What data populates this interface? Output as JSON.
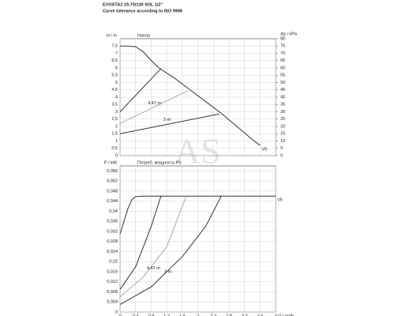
{
  "watermark": "AS",
  "chart_data": [
    {
      "type": "line",
      "title": "EVOSTA2 29-70/130 SOL 1/2\"",
      "subtitle": "Curve tolerance according to ISO 9906",
      "ylabel": "H / m",
      "y2label": "Δp / kPa",
      "annotation": "Напор",
      "xlim": [
        0,
        4
      ],
      "ylim": [
        0,
        8
      ],
      "y2lim": [
        0,
        80
      ],
      "grid": true,
      "yticks": [
        0,
        {
          "value": 0.5,
          "label": "0,5"
        },
        1,
        {
          "value": 1.5,
          "label": "1,5"
        },
        2,
        {
          "value": 2.5,
          "label": "2,5"
        },
        3,
        {
          "value": 3.5,
          "label": "3,5"
        },
        4,
        {
          "value": 4.5,
          "label": "4,5"
        },
        5,
        {
          "value": 5.5,
          "label": "5,5"
        },
        6,
        {
          "value": 6.5,
          "label": "6,5"
        },
        7,
        {
          "value": 7.5,
          "label": "7,5"
        }
      ],
      "y2ticks": [
        0,
        5,
        10,
        15,
        20,
        25,
        30,
        35,
        40,
        45,
        50,
        55,
        60,
        65,
        70,
        75,
        80
      ],
      "series": [
        {
          "name": "V6",
          "color": "#333333",
          "x": [
            0,
            0.2,
            0.4,
            0.6,
            0.8,
            1.0,
            1.4,
            1.8,
            2.2,
            2.6,
            3.0,
            3.4,
            3.6
          ],
          "values": [
            7.5,
            7.5,
            7.45,
            7.1,
            6.5,
            6.0,
            5.3,
            4.5,
            3.7,
            2.9,
            2.0,
            1.1,
            0.7
          ]
        },
        {
          "color": "#333333",
          "x": [
            0,
            1.05
          ],
          "values": [
            3.0,
            5.95
          ]
        },
        {
          "name": "4,47 m",
          "color": "#aaaaaa",
          "x": [
            0,
            1.75
          ],
          "values": [
            2.2,
            4.45
          ]
        },
        {
          "name": "3 m",
          "color": "#333333",
          "x": [
            0,
            2.55
          ],
          "values": [
            1.5,
            2.85
          ]
        }
      ]
    },
    {
      "type": "line",
      "ylabel": "P / kW",
      "xlabel": "Q / m³/h",
      "annotation": "Потреб. мощность P1",
      "xlim": [
        0,
        4
      ],
      "ylim": [
        0,
        0.058
      ],
      "grid": true,
      "xticks": [
        0,
        {
          "value": 0.4,
          "label": "0,4"
        },
        {
          "value": 0.8,
          "label": "0,8"
        },
        {
          "value": 1.2,
          "label": "1,2"
        },
        {
          "value": 1.6,
          "label": "1,6"
        },
        2,
        {
          "value": 2.4,
          "label": "2,4"
        },
        {
          "value": 2.8,
          "label": "2,8"
        },
        {
          "value": 3.2,
          "label": "3,2"
        },
        {
          "value": 3.6,
          "label": "3,6"
        },
        4
      ],
      "yticks": [
        0,
        {
          "value": 0.004,
          "label": "0,004"
        },
        {
          "value": 0.008,
          "label": "0,008"
        },
        {
          "value": 0.012,
          "label": "0,012"
        },
        {
          "value": 0.016,
          "label": "0,016"
        },
        {
          "value": 0.02,
          "label": "0,02"
        },
        {
          "value": 0.024,
          "label": "0,024"
        },
        {
          "value": 0.028,
          "label": "0,028"
        },
        {
          "value": 0.032,
          "label": "0,032"
        },
        {
          "value": 0.036,
          "label": "0,036"
        },
        {
          "value": 0.04,
          "label": "0,04"
        },
        {
          "value": 0.044,
          "label": "0,044"
        },
        {
          "value": 0.048,
          "label": "0,048"
        },
        {
          "value": 0.052,
          "label": "0,052"
        },
        {
          "value": 0.056,
          "label": "0,056"
        }
      ],
      "series": [
        {
          "name": "V6",
          "color": "#333333",
          "x": [
            0,
            0.1,
            0.2,
            0.3,
            0.4,
            0.6,
            1,
            2,
            3,
            4
          ],
          "values": [
            0.031,
            0.036,
            0.041,
            0.0445,
            0.0458,
            0.046,
            0.046,
            0.046,
            0.046,
            0.046
          ]
        },
        {
          "color": "#333333",
          "x": [
            0,
            0.4,
            0.8,
            1.05
          ],
          "values": [
            0.009,
            0.018,
            0.034,
            0.046
          ]
        },
        {
          "name": "4,47 m",
          "color": "#aaaaaa",
          "x": [
            0,
            0.6,
            1.2,
            1.7
          ],
          "values": [
            0.006,
            0.014,
            0.026,
            0.046
          ]
        },
        {
          "name": "3 m",
          "color": "#333333",
          "x": [
            0,
            0.8,
            1.6,
            2.2,
            2.6
          ],
          "values": [
            0.003,
            0.01,
            0.022,
            0.034,
            0.046
          ]
        }
      ]
    }
  ]
}
